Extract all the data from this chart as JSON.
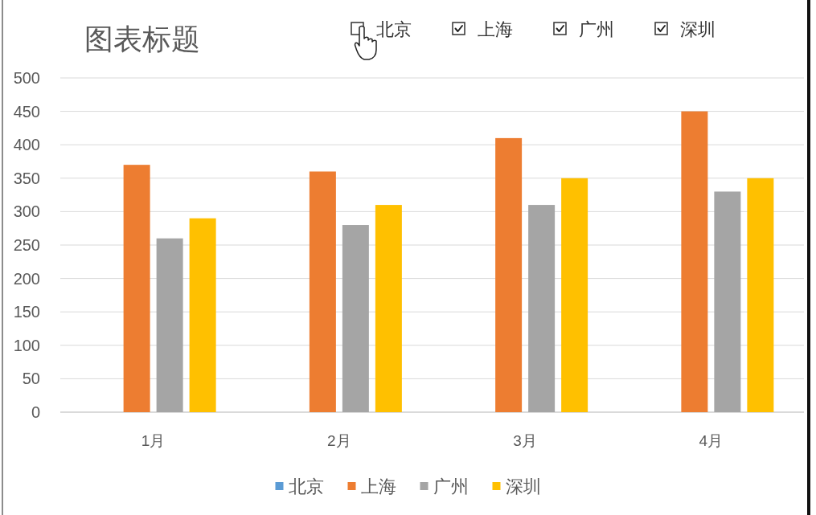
{
  "chart_data": {
    "type": "bar",
    "title": "图表标题",
    "categories": [
      "1月",
      "2月",
      "3月",
      "4月"
    ],
    "series": [
      {
        "name": "北京",
        "color": "#5b9bd5",
        "values": [
          null,
          null,
          null,
          null
        ]
      },
      {
        "name": "上海",
        "color": "#ed7d31",
        "values": [
          370,
          360,
          410,
          450
        ]
      },
      {
        "name": "广州",
        "color": "#a5a5a5",
        "values": [
          260,
          280,
          310,
          330
        ]
      },
      {
        "name": "深圳",
        "color": "#ffc000",
        "values": [
          290,
          310,
          350,
          350
        ]
      }
    ],
    "ylim": [
      0,
      500
    ],
    "yticks": [
      0,
      50,
      100,
      150,
      200,
      250,
      300,
      350,
      400,
      450,
      500
    ],
    "grid": "y",
    "legend": "bottom"
  }
}
